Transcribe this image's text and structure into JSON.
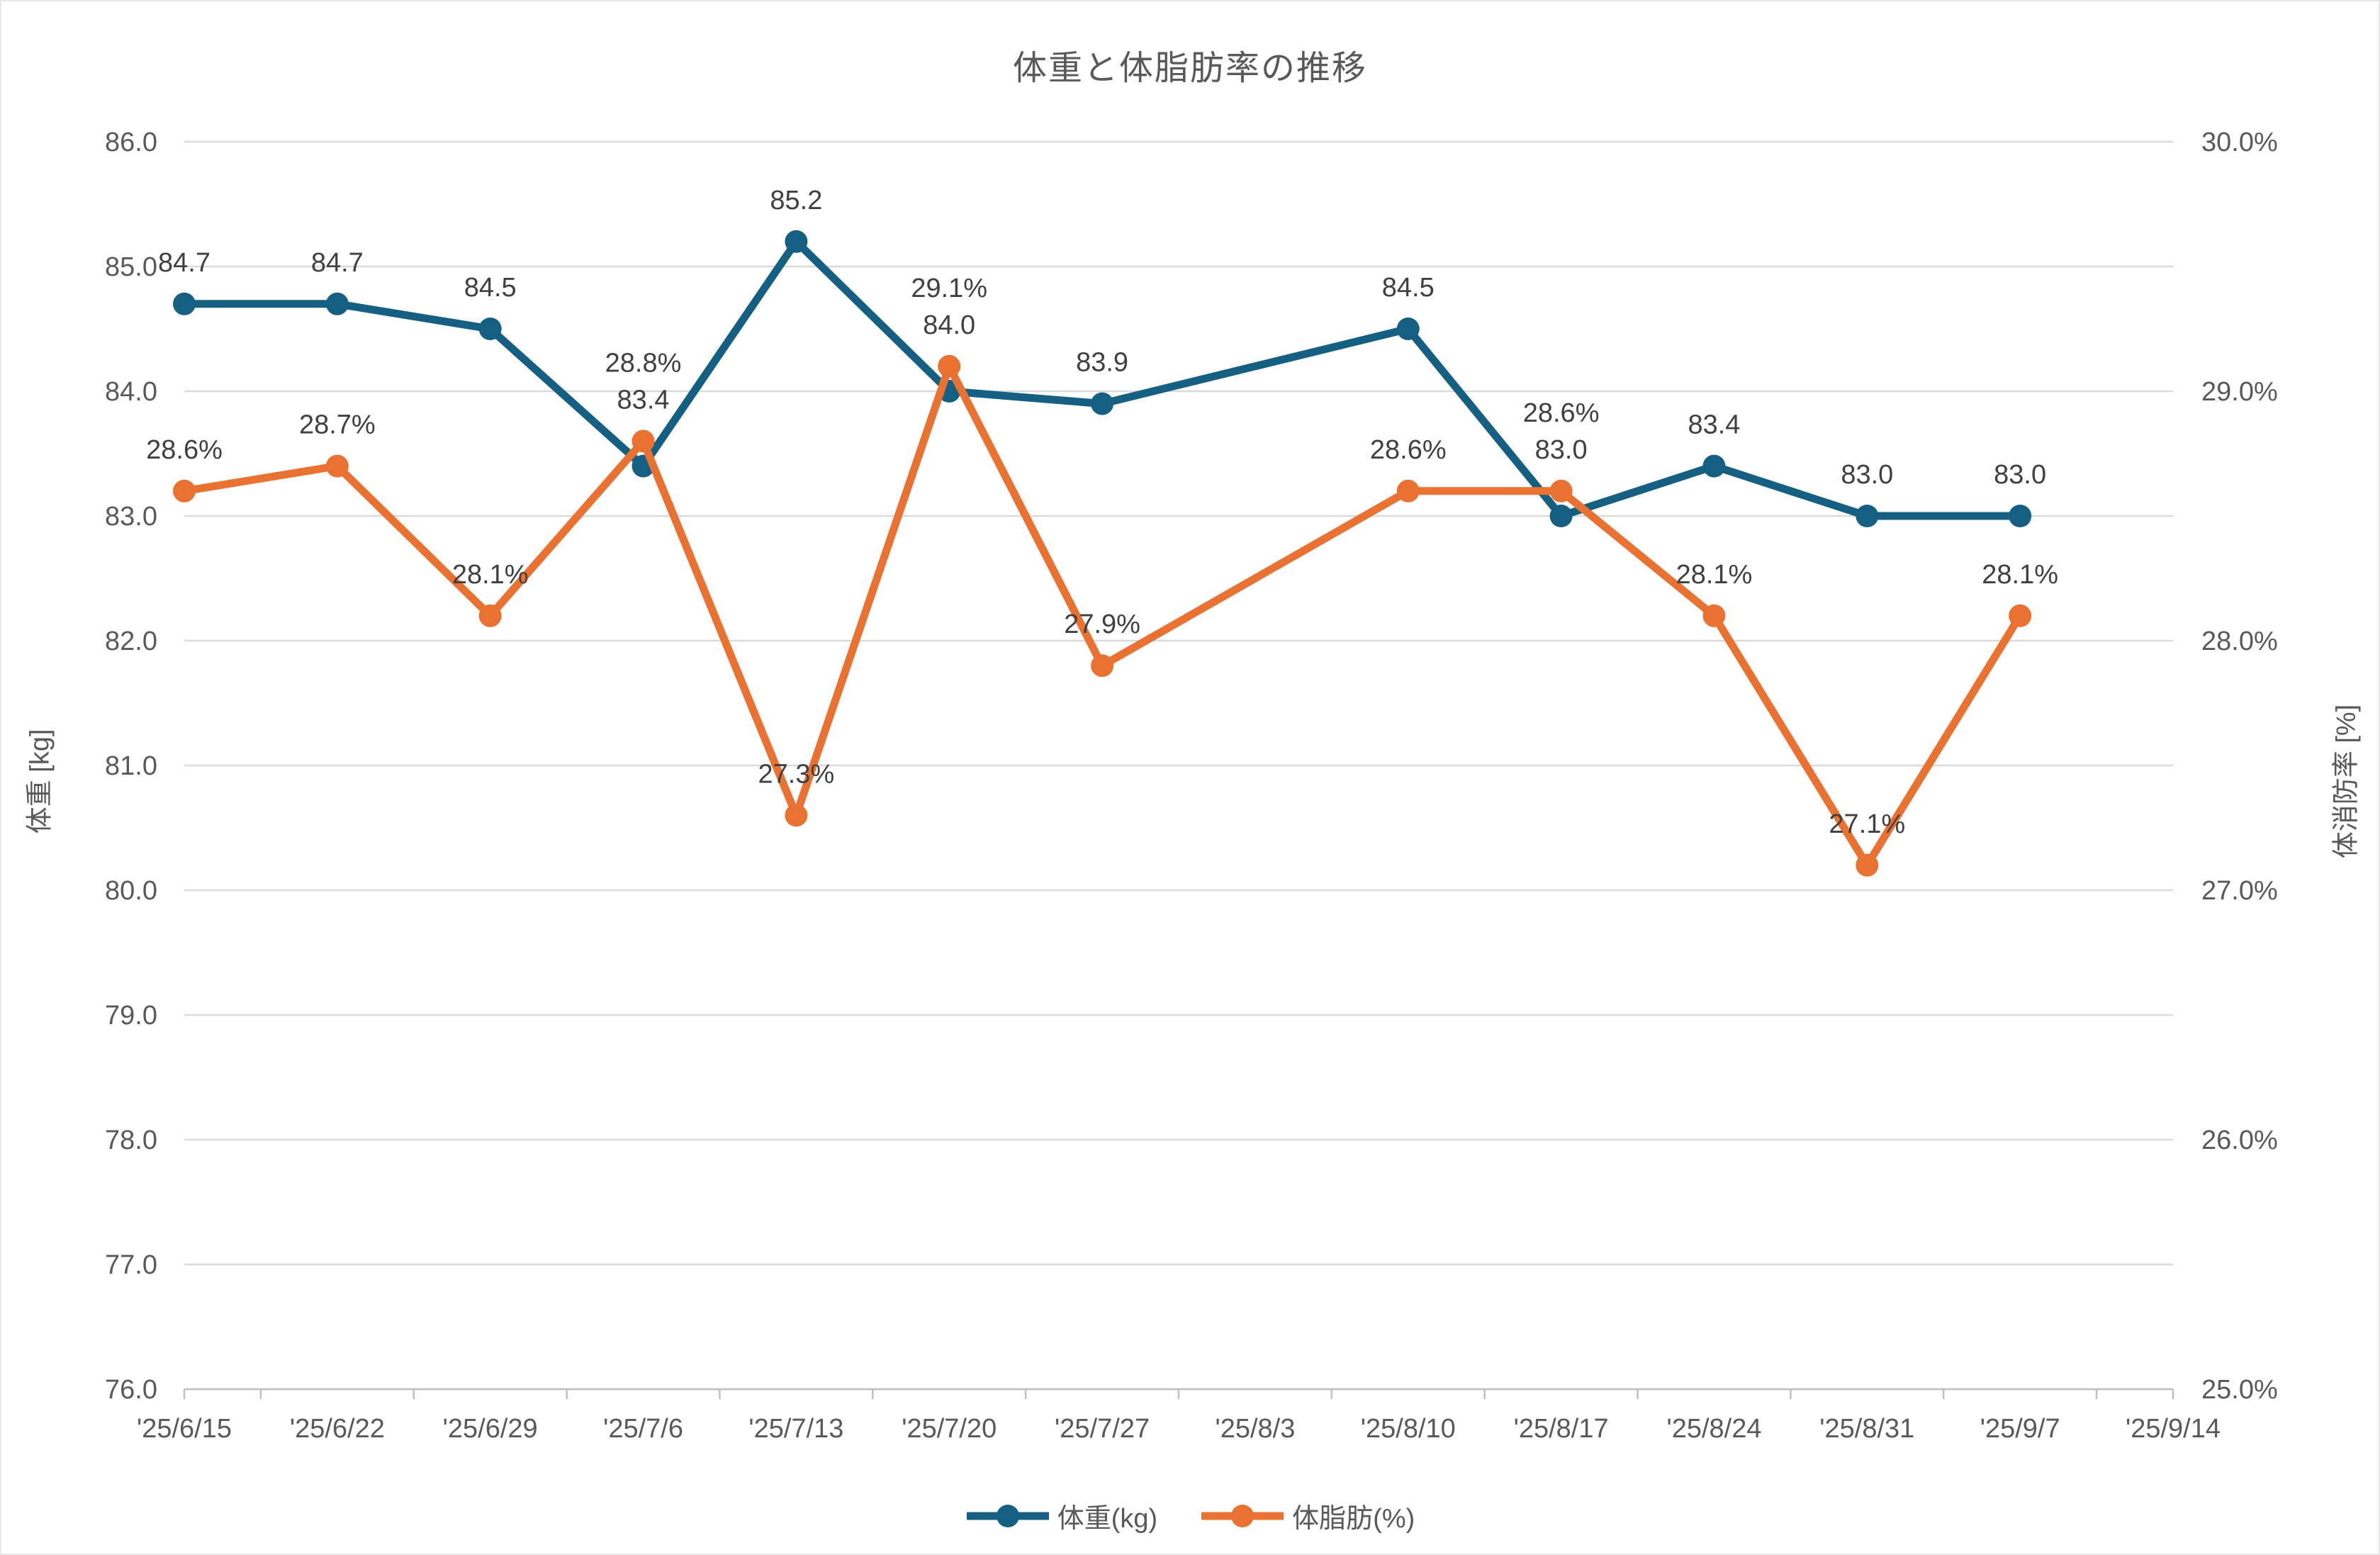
{
  "chart_data": {
    "type": "line",
    "title": "体重と体脂肪率の推移",
    "categories": [
      "'25/6/15",
      "'25/6/22",
      "'25/6/29",
      "'25/7/6",
      "'25/7/13",
      "'25/7/20",
      "'25/7/27",
      "'25/8/3",
      "'25/8/10",
      "'25/8/17",
      "'25/8/24",
      "'25/8/31",
      "'25/9/7",
      "'25/9/14"
    ],
    "series": [
      {
        "name": "体重(kg)",
        "axis": "left",
        "color": "#156082",
        "values": [
          84.7,
          84.7,
          84.5,
          83.4,
          85.2,
          84.0,
          83.9,
          null,
          84.5,
          83.0,
          83.4,
          83.0,
          83.0,
          null
        ],
        "labels": [
          "84.7",
          "84.7",
          "84.5",
          "83.4",
          "85.2",
          "84.0",
          "83.9",
          null,
          "84.5",
          "83.0",
          "83.4",
          "83.0",
          "83.0",
          null
        ]
      },
      {
        "name": "体脂肪(%)",
        "axis": "right",
        "color": "#E97132",
        "values": [
          28.6,
          28.7,
          28.1,
          28.8,
          27.3,
          29.1,
          27.9,
          null,
          28.6,
          28.6,
          28.1,
          27.1,
          28.1,
          null
        ],
        "labels": [
          "28.6%",
          "28.7%",
          "28.1%",
          "28.8%",
          "27.3%",
          "29.1%",
          "27.9%",
          null,
          "28.6%",
          "28.6%",
          "28.1%",
          "27.1%",
          "28.1%",
          null
        ]
      }
    ],
    "left_axis": {
      "title": "体重 [kg]",
      "min": 76,
      "max": 86,
      "step": 1,
      "ticks": [
        "86.0",
        "85.0",
        "84.0",
        "83.0",
        "82.0",
        "81.0",
        "80.0",
        "79.0",
        "78.0",
        "77.0",
        "76.0"
      ]
    },
    "right_axis": {
      "title": "体消防率 [%]",
      "min": 25,
      "max": 30,
      "step": 1,
      "ticks": [
        "30.0%",
        "29.0%",
        "28.0%",
        "27.0%",
        "26.0%",
        "25.0%"
      ]
    },
    "grid": true,
    "legend_position": "bottom",
    "colors": {
      "grid": "#D9D9D9",
      "axis_line": "#BFBFBF",
      "tick_text": "#595959",
      "data_label": "#404040",
      "title_text": "#595959"
    }
  }
}
